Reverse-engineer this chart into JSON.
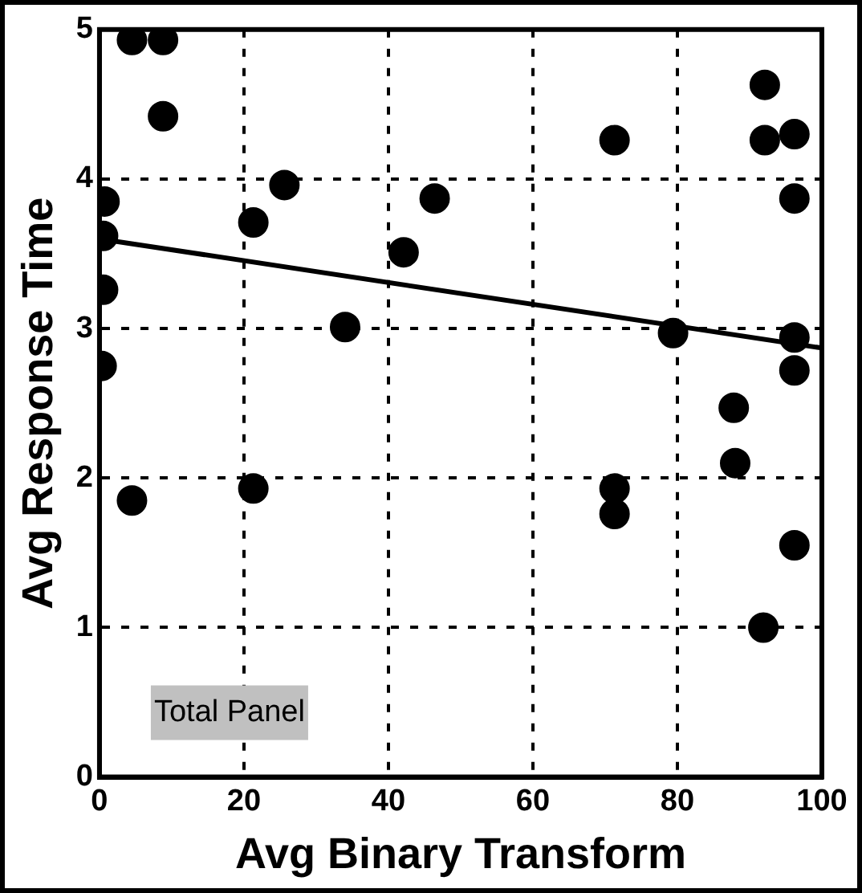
{
  "chart_data": {
    "type": "scatter",
    "xlabel": "Avg Binary Transform",
    "ylabel": "Avg Response Time",
    "annotations": [
      "Total Panel"
    ],
    "xlim": [
      0,
      100
    ],
    "ylim": [
      0,
      5
    ],
    "xticks": [
      0,
      20,
      40,
      60,
      80,
      100
    ],
    "yticks": [
      0,
      1,
      2,
      3,
      4,
      5
    ],
    "grid": true,
    "marker": "circle",
    "series": [
      {
        "color": "#000000",
        "x": [
          4.5,
          8.8,
          8.8,
          0.7,
          0.5,
          0.5,
          0.3,
          25.6,
          21.3,
          46.4,
          42.1,
          34,
          4.5,
          21.3,
          92.1,
          92.1,
          96.2,
          71.3,
          96.2,
          79.4,
          96.2,
          96.2,
          87.8,
          88,
          71.3,
          71.3,
          96.2,
          91.9
        ],
        "values": [
          4.93,
          4.93,
          4.42,
          3.85,
          3.62,
          3.26,
          2.75,
          3.96,
          3.71,
          3.87,
          3.51,
          3.01,
          1.85,
          1.93,
          4.63,
          4.26,
          4.3,
          4.26,
          3.87,
          2.97,
          2.94,
          2.72,
          2.47,
          2.1,
          1.93,
          1.76,
          1.55,
          1.0
        ]
      },
      {
        "type": "line",
        "marker": "none",
        "color": "#000000",
        "x": [
          0,
          100
        ],
        "values": [
          3.6,
          2.87
        ]
      }
    ]
  }
}
